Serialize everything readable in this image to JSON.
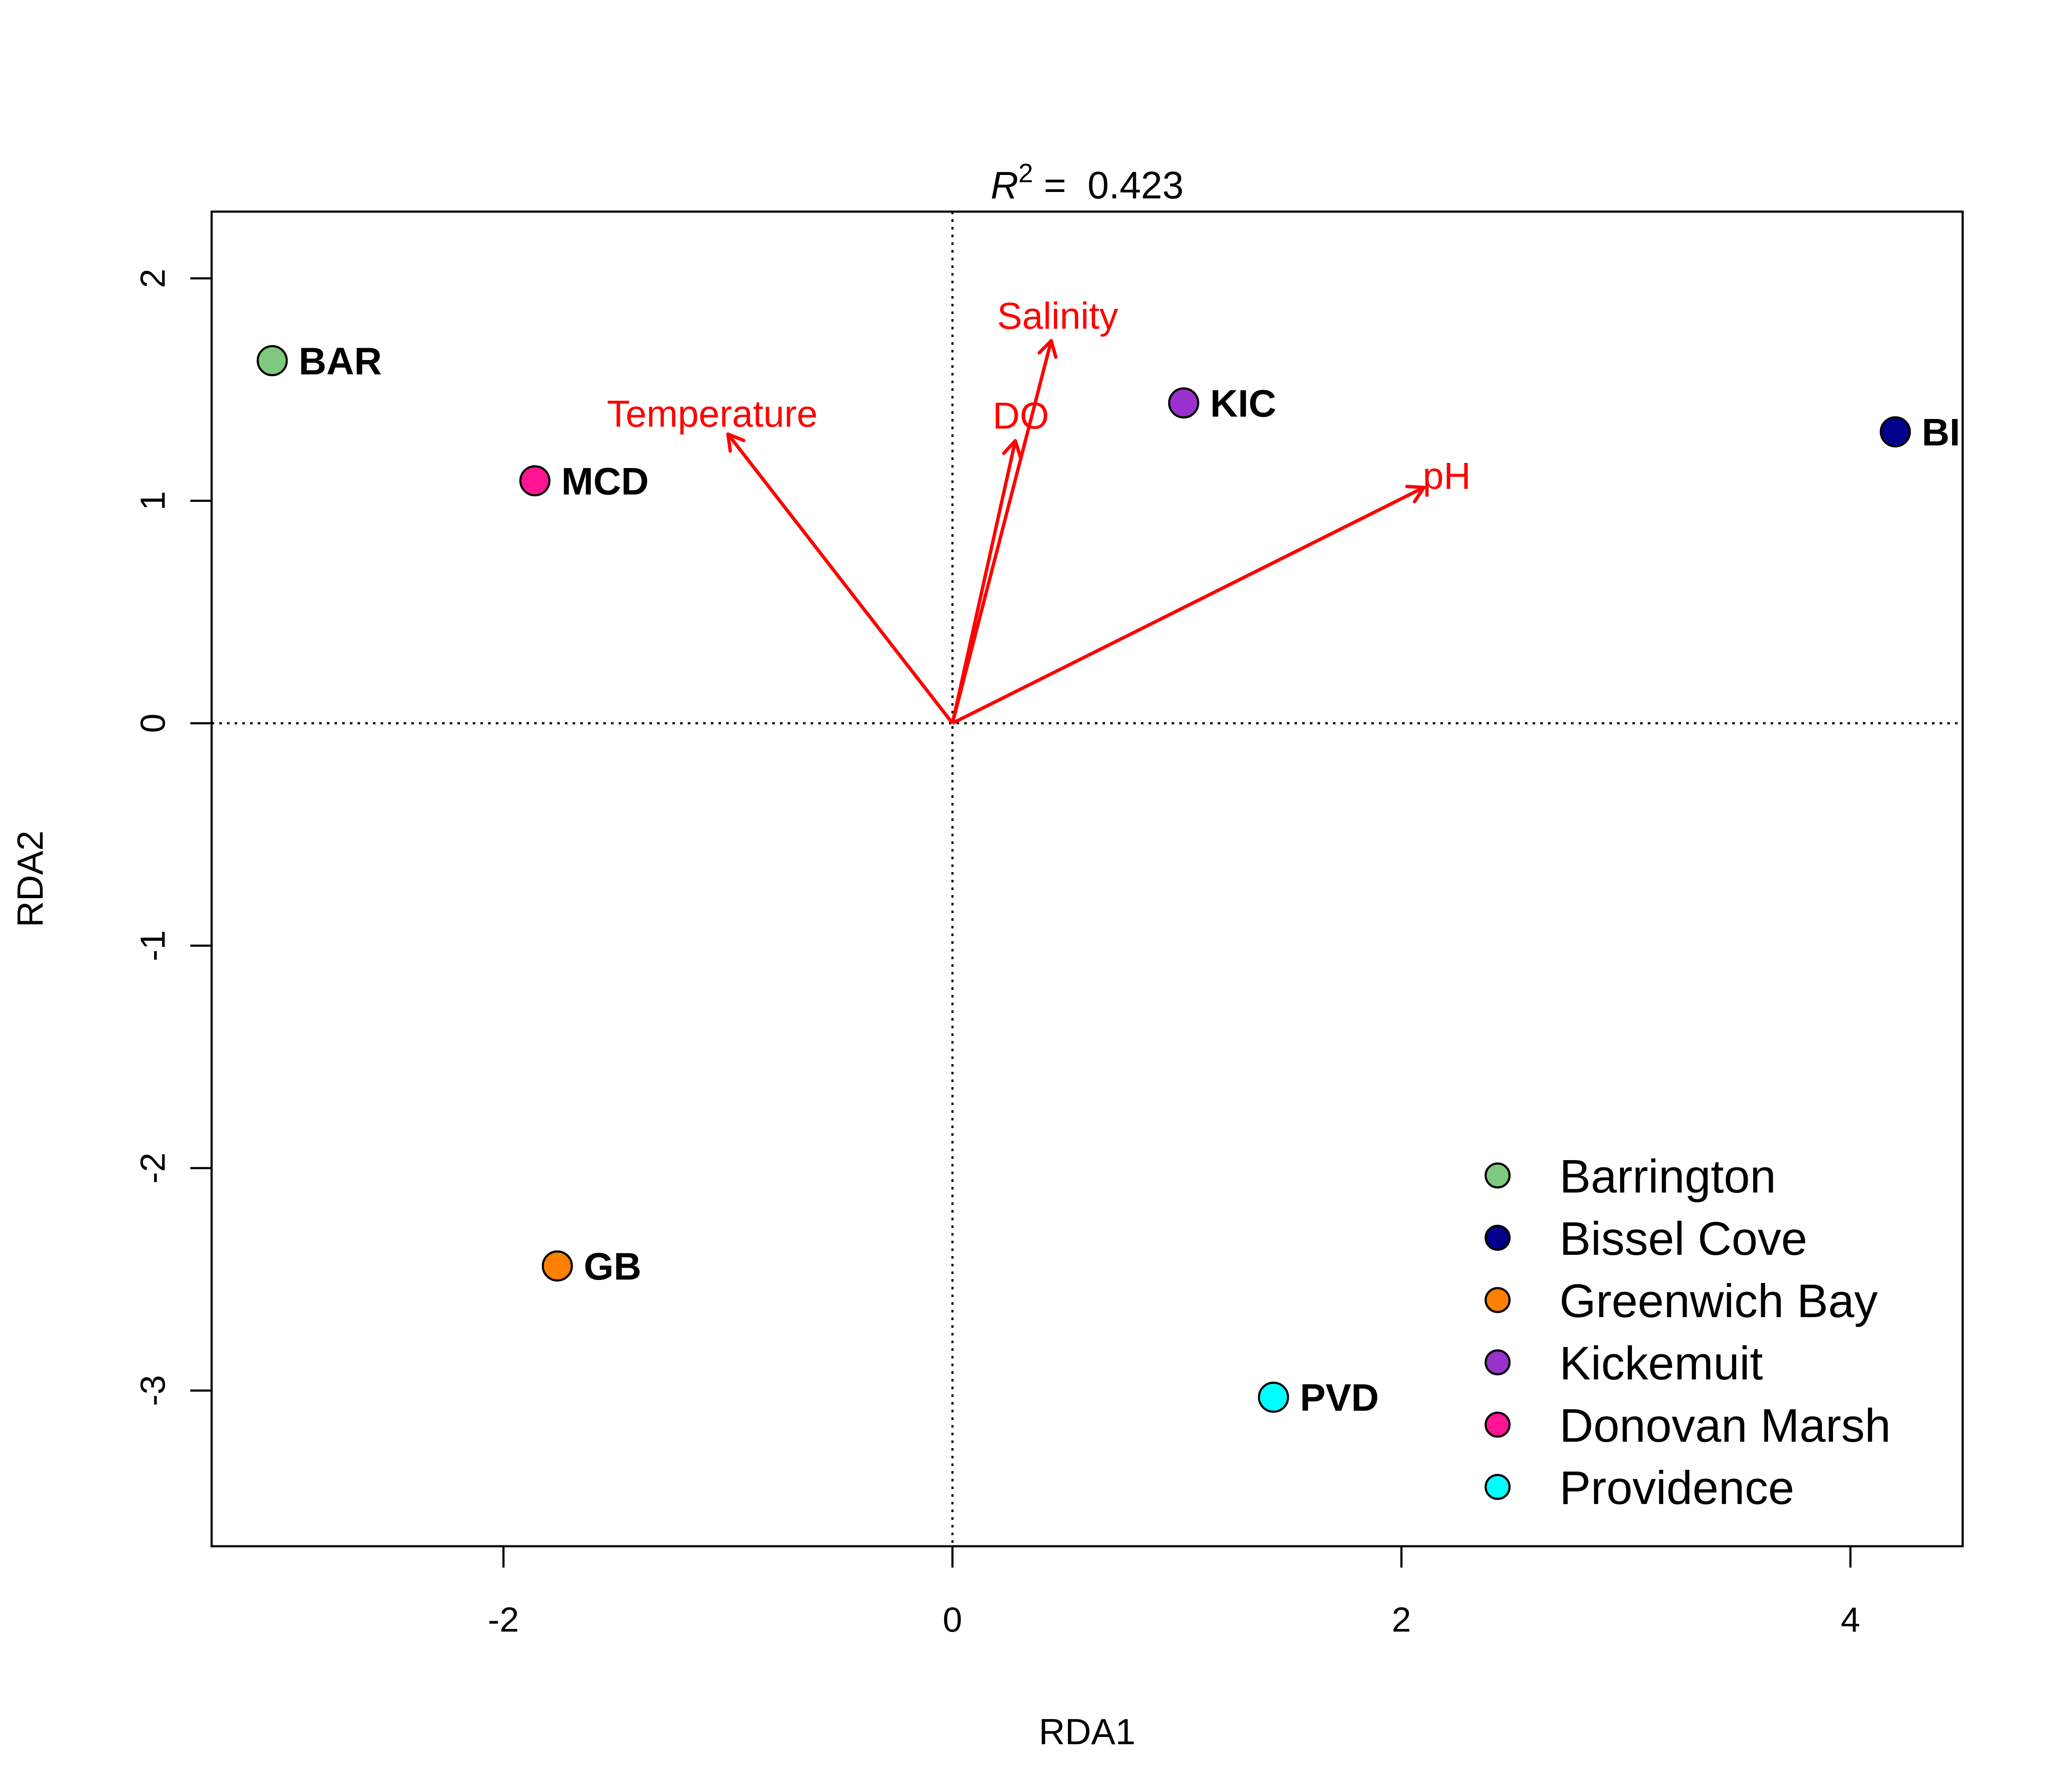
{
  "chart_data": {
    "type": "scatter",
    "title_prefix": "R",
    "title_superscript": "2",
    "title_value": " =  0.423",
    "xlabel": "RDA1",
    "ylabel": "RDA2",
    "xlim": [
      -3.3,
      4.5
    ],
    "ylim": [
      -3.7,
      2.3
    ],
    "xticks": [
      -2,
      0,
      2,
      4
    ],
    "yticks": [
      -3,
      -2,
      -1,
      0,
      1,
      2
    ],
    "grid": false,
    "reference_lines": "dotted lines at x=0 and y=0",
    "legend_position": "bottom-right",
    "points": [
      {
        "label": "BAR",
        "name": "Barrington",
        "x": -3.03,
        "y": 1.63,
        "color": "#7fc97f"
      },
      {
        "label": "BI",
        "name": "Bissel Cove",
        "x": 4.2,
        "y": 1.31,
        "color": "#00008b"
      },
      {
        "label": "GB",
        "name": "Greenwich Bay",
        "x": -1.76,
        "y": -2.44,
        "color": "#ff7f00"
      },
      {
        "label": "KIC",
        "name": "Kickemuit",
        "x": 1.03,
        "y": 1.44,
        "color": "#9932cc"
      },
      {
        "label": "MCD",
        "name": "Donovan Marsh",
        "x": -1.86,
        "y": 1.09,
        "color": "#ff1493"
      },
      {
        "label": "PVD",
        "name": "Providence",
        "x": 1.43,
        "y": -3.03,
        "color": "#00ffff"
      }
    ],
    "vectors": [
      {
        "label": "Temperature",
        "x": -1.0,
        "y": 1.3
      },
      {
        "label": "Salinity",
        "x": 0.44,
        "y": 1.72
      },
      {
        "label": "DO",
        "x": 0.28,
        "y": 1.27
      },
      {
        "label": "pH",
        "x": 2.1,
        "y": 1.06
      }
    ],
    "vector_color": "#ff0000",
    "legend": [
      {
        "label": "Barrington",
        "color": "#7fc97f"
      },
      {
        "label": "Bissel Cove",
        "color": "#00008b"
      },
      {
        "label": "Greenwich Bay",
        "color": "#ff7f00"
      },
      {
        "label": "Kickemuit",
        "color": "#9932cc"
      },
      {
        "label": "Donovan Marsh",
        "color": "#ff1493"
      },
      {
        "label": "Providence",
        "color": "#00ffff"
      }
    ]
  }
}
